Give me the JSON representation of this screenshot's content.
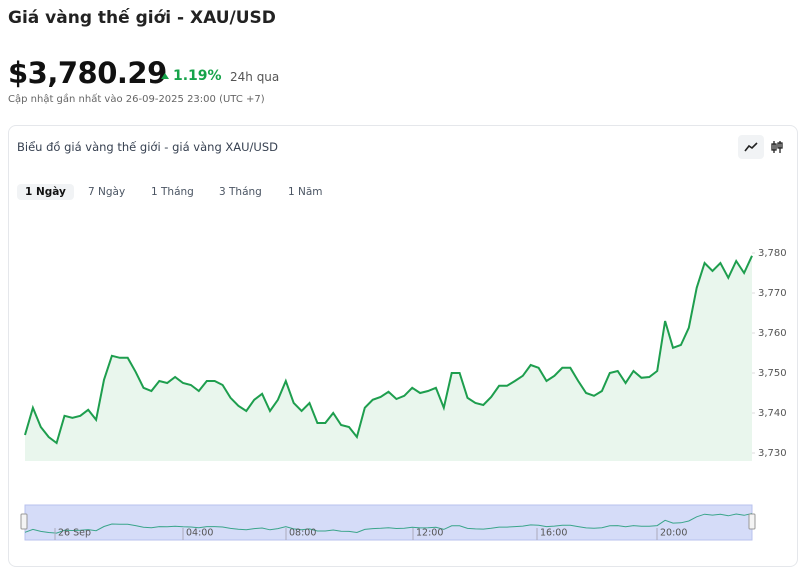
{
  "header": {
    "title": "Giá vàng thế giới - XAU/USD",
    "price": "$3,780.29",
    "change": "1.19%",
    "change_period": "24h qua",
    "updated": "Cập nhật gần nhất vào 26-09-2025 23:00 (UTC +7)"
  },
  "card": {
    "title": "Biểu đồ giá vàng thế giới - giá vàng XAU/USD",
    "tabs": [
      "1 Ngày",
      "7 Ngày",
      "1 Tháng",
      "3 Tháng",
      "1 Năm"
    ]
  },
  "chart_data": {
    "type": "line",
    "color": "#1e9e4e",
    "fill_color": "#e9f6ed",
    "values": [
      3734.5,
      3741.3,
      3736.5,
      3734,
      3732.5,
      3739.3,
      3738.8,
      3739.3,
      3740.8,
      3738.3,
      3748.3,
      3754.3,
      3753.8,
      3753.8,
      3750.3,
      3746.3,
      3745.5,
      3748,
      3747.5,
      3749,
      3747.5,
      3747,
      3745.5,
      3748,
      3748,
      3747,
      3743.8,
      3741.8,
      3740.5,
      3743.3,
      3744.8,
      3740.5,
      3743.3,
      3748,
      3742.5,
      3740.5,
      3742.5,
      3737.5,
      3737.5,
      3740,
      3737,
      3736.5,
      3734,
      3741.3,
      3743.3,
      3744,
      3745.3,
      3743.5,
      3744.3,
      3746.3,
      3745,
      3745.5,
      3746.3,
      3741.3,
      3750,
      3750,
      3743.8,
      3742.5,
      3742,
      3744,
      3746.8,
      3746.8,
      3748,
      3749.3,
      3752,
      3751.3,
      3748,
      3749.3,
      3751.3,
      3751.3,
      3748,
      3745,
      3744.3,
      3745.5,
      3750,
      3750.5,
      3747.5,
      3750.5,
      3748.8,
      3749,
      3750.5,
      3763,
      3756.3,
      3757,
      3761.3,
      3771.3,
      3777.5,
      3775.5,
      3777.5,
      3773.8,
      3778,
      3775,
      3779.3
    ],
    "ylim": [
      3728,
      3790
    ],
    "yticks": [
      {
        "value": 3730,
        "label": "3,730"
      },
      {
        "value": 3740,
        "label": "3,740"
      },
      {
        "value": 3750,
        "label": "3,750"
      },
      {
        "value": 3760,
        "label": "3,760"
      },
      {
        "value": 3770,
        "label": "3,770"
      },
      {
        "value": 3780,
        "label": "3,780"
      }
    ]
  },
  "navigator": {
    "labels": [
      "26 Sep",
      "04:00",
      "08:00",
      "12:00",
      "16:00",
      "20:00"
    ]
  }
}
